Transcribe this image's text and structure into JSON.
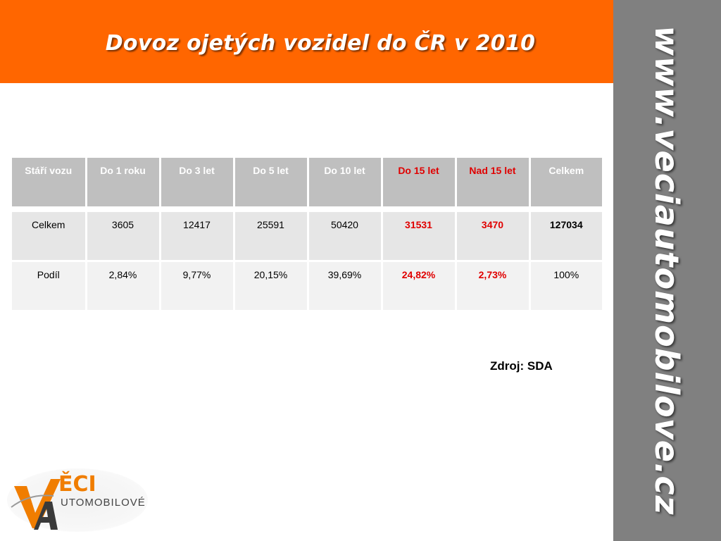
{
  "slide": {
    "title": "Dovoz ojetých vozidel do ČR v 2010",
    "side_url": "www.veciautomobilove.cz",
    "source": "Zdroj: SDA"
  },
  "table": {
    "headers": [
      "Stáří vozu",
      "Do 1 roku",
      "Do 3 let",
      "Do 5 let",
      "Do 10 let",
      "Do 15 let",
      "Nad 15 let",
      "Celkem"
    ],
    "rows": [
      [
        "Celkem",
        "3605",
        "12417",
        "25591",
        "50420",
        "31531",
        "3470",
        "127034"
      ],
      [
        "Podíl",
        "2,84%",
        "9,77%",
        "20,15%",
        "39,69%",
        "24,82%",
        "2,73%",
        "100%"
      ]
    ]
  },
  "logo": {
    "text_top": "ĚCI",
    "text_bottom": "UTOMOBILOVÉ"
  },
  "colors": {
    "header": "#ff6600",
    "sidebar": "#808080",
    "highlight": "#e00000",
    "table_header": "#bfbfbf"
  }
}
